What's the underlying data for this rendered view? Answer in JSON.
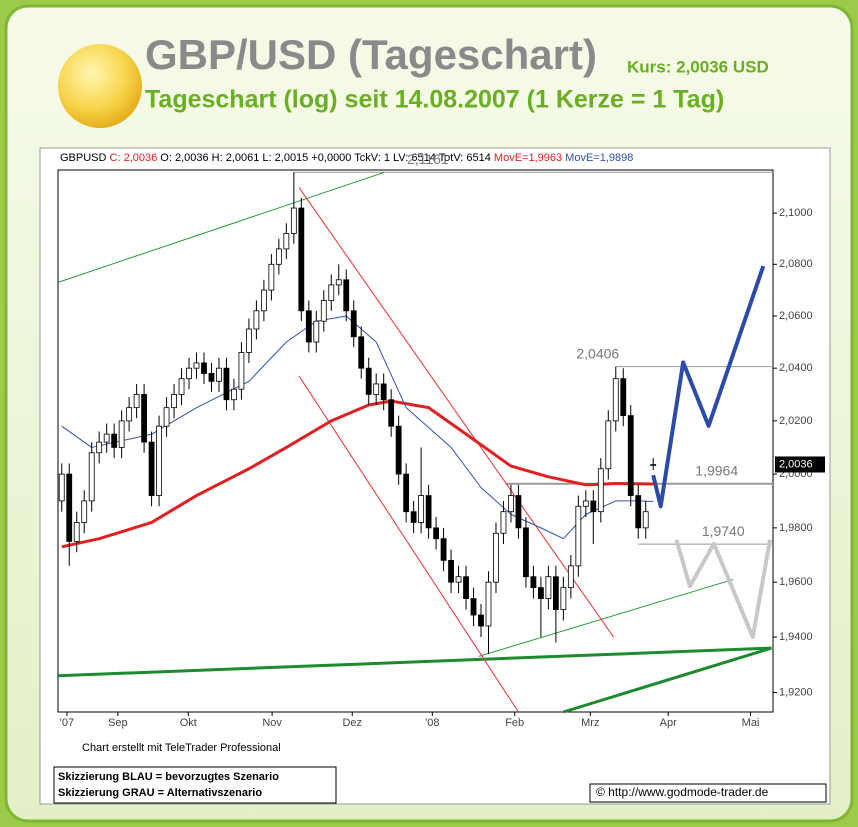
{
  "chart_data": {
    "type": "candlestick",
    "title": "GBP/USD (Tageschart)",
    "title_note": "Kurs: 2,0036 USD",
    "subtitle": "Tageschart (log) seit 14.08.2007 (1 Kerze = 1 Tag)",
    "info_symbol": "GBPUSD",
    "info_close": "C: 2,0036",
    "info_rest": "O: 2,0036 H: 2,0061 L: 2,0015 +0,0000 TckV: 1 LV: 6514 TotV: 6514",
    "price_tag": "2,0036",
    "footer": "Chart erstellt mit TeleTrader Professional",
    "notes": [
      "Skizzierung BLAU = bevorzugtes Szenario",
      "Skizzierung GRAU = Alternativszenario"
    ],
    "source": "© http://www.godmode-trader.de",
    "log_scale": true,
    "xlim": [
      -0.5,
      95
    ],
    "xticks": [
      {
        "value": 0.7,
        "label": "'07"
      },
      {
        "value": 7.5,
        "label": "Sep"
      },
      {
        "value": 16.9,
        "label": "Okt"
      },
      {
        "value": 28.1,
        "label": "Nov"
      },
      {
        "value": 38.8,
        "label": "Dez"
      },
      {
        "value": 49.5,
        "label": "'08"
      },
      {
        "value": 60.5,
        "label": "Feb"
      },
      {
        "value": 70.6,
        "label": "Mrz"
      },
      {
        "value": 81,
        "label": "Apr"
      },
      {
        "value": 92,
        "label": "Mai"
      }
    ],
    "ylim": [
      1.913,
      2.117
    ],
    "yticks": [
      {
        "value": 1.92,
        "label": "1,9200"
      },
      {
        "value": 1.94,
        "label": "1,9400"
      },
      {
        "value": 1.96,
        "label": "1,9600"
      },
      {
        "value": 1.98,
        "label": "1,9800"
      },
      {
        "value": 2.0,
        "label": "2,0000"
      },
      {
        "value": 2.02,
        "label": "2,0200"
      },
      {
        "value": 2.04,
        "label": "2,0400"
      },
      {
        "value": 2.06,
        "label": "2,0600"
      },
      {
        "value": 2.08,
        "label": "2,0800"
      },
      {
        "value": 2.1,
        "label": "2,1000"
      }
    ],
    "open": [
      1.99,
      2.0,
      1.975,
      1.982,
      1.99,
      2.008,
      2.012,
      2.015,
      2.01,
      2.02,
      2.025,
      2.03,
      2.012,
      1.992,
      2.018,
      2.025,
      2.03,
      2.036,
      2.04,
      2.042,
      2.038,
      2.035,
      2.04,
      2.028,
      2.032,
      2.046,
      2.055,
      2.062,
      2.07,
      2.08,
      2.086,
      2.092,
      2.102,
      2.062,
      2.05,
      2.058,
      2.066,
      2.072,
      2.074,
      2.062,
      2.052,
      2.04,
      2.03,
      2.034,
      2.028,
      2.018,
      2.0,
      1.986,
      1.982,
      1.992,
      1.98,
      1.976,
      1.968,
      1.96,
      1.962,
      1.954,
      1.948,
      1.944,
      1.96,
      1.978,
      1.986,
      1.992,
      1.98,
      1.962,
      1.958,
      1.954,
      1.962,
      1.95,
      1.958,
      1.966,
      1.988,
      1.99,
      1.986,
      2.002,
      2.02,
      2.036,
      2.022,
      1.992,
      1.98,
      2.0036
    ],
    "high": [
      2.004,
      2.004,
      1.986,
      1.994,
      2.012,
      2.016,
      2.019,
      2.019,
      2.024,
      2.029,
      2.034,
      2.034,
      2.016,
      2.022,
      2.029,
      2.034,
      2.04,
      2.044,
      2.046,
      2.046,
      2.042,
      2.044,
      2.044,
      2.036,
      2.05,
      2.059,
      2.066,
      2.074,
      2.084,
      2.09,
      2.096,
      2.1161,
      2.106,
      2.066,
      2.062,
      2.07,
      2.076,
      2.08,
      2.078,
      2.066,
      2.056,
      2.044,
      2.038,
      2.038,
      2.032,
      2.022,
      2.004,
      1.99,
      2.01,
      1.996,
      1.984,
      1.98,
      1.972,
      1.966,
      1.966,
      1.958,
      1.952,
      1.964,
      1.982,
      1.99,
      1.996,
      1.996,
      1.984,
      1.966,
      1.962,
      1.966,
      1.966,
      1.962,
      1.97,
      1.992,
      1.994,
      1.994,
      2.006,
      2.024,
      2.0406,
      2.04,
      2.026,
      1.996,
      1.99,
      2.0061
    ],
    "low": [
      1.986,
      1.966,
      1.971,
      1.978,
      1.986,
      2.004,
      2.008,
      2.006,
      2.006,
      2.016,
      2.021,
      2.008,
      1.988,
      1.988,
      2.014,
      2.021,
      2.026,
      2.032,
      2.036,
      2.034,
      2.031,
      2.031,
      2.024,
      2.024,
      2.028,
      2.042,
      2.051,
      2.058,
      2.066,
      2.076,
      2.082,
      2.088,
      2.058,
      2.046,
      2.046,
      2.054,
      2.062,
      2.068,
      2.058,
      2.048,
      2.036,
      2.026,
      2.026,
      2.024,
      2.014,
      1.996,
      1.982,
      1.978,
      1.978,
      1.976,
      1.972,
      1.964,
      1.956,
      1.956,
      1.95,
      1.944,
      1.94,
      1.934,
      1.956,
      1.974,
      1.982,
      1.976,
      1.958,
      1.954,
      1.94,
      1.95,
      1.938,
      1.946,
      1.954,
      1.962,
      1.984,
      1.974,
      1.982,
      1.998,
      2.016,
      2.018,
      1.988,
      1.976,
      1.976,
      2.0015
    ],
    "close": [
      2.0,
      1.975,
      1.982,
      1.99,
      2.008,
      2.012,
      2.015,
      2.01,
      2.02,
      2.025,
      2.03,
      2.012,
      1.992,
      2.018,
      2.025,
      2.03,
      2.036,
      2.04,
      2.042,
      2.038,
      2.035,
      2.04,
      2.028,
      2.032,
      2.046,
      2.055,
      2.062,
      2.07,
      2.08,
      2.086,
      2.092,
      2.102,
      2.062,
      2.05,
      2.058,
      2.066,
      2.072,
      2.074,
      2.062,
      2.052,
      2.04,
      2.03,
      2.034,
      2.028,
      2.018,
      2.0,
      1.986,
      1.982,
      1.992,
      1.98,
      1.976,
      1.968,
      1.96,
      1.962,
      1.954,
      1.948,
      1.944,
      1.96,
      1.978,
      1.986,
      1.992,
      1.98,
      1.962,
      1.958,
      1.954,
      1.962,
      1.95,
      1.958,
      1.966,
      1.988,
      1.99,
      1.986,
      2.002,
      2.02,
      2.036,
      2.022,
      1.992,
      1.98,
      1.986,
      2.0036
    ],
    "series": [
      {
        "name": "MovE=1,9963",
        "color": "#e02020",
        "width": 3,
        "x": [
          0,
          5,
          12,
          18,
          25,
          30,
          36,
          41,
          44,
          49,
          54,
          60,
          65,
          70,
          74,
          79
        ],
        "values": [
          1.973,
          1.976,
          1.982,
          1.992,
          2.002,
          2.01,
          2.02,
          2.026,
          2.0275,
          2.025,
          2.015,
          2.003,
          1.999,
          1.996,
          1.9965,
          1.9963
        ]
      },
      {
        "name": "MovE=1,9898",
        "color": "#3050b0",
        "width": 1,
        "x": [
          0,
          4,
          12,
          18,
          25,
          30,
          34,
          38,
          42,
          46,
          52,
          56,
          60,
          64,
          67,
          70,
          74,
          77,
          79
        ],
        "values": [
          2.018,
          2.01,
          2.015,
          2.025,
          2.035,
          2.05,
          2.058,
          2.06,
          2.05,
          2.025,
          2.01,
          1.995,
          1.985,
          1.98,
          1.976,
          1.985,
          1.99,
          1.99,
          1.9898
        ]
      }
    ],
    "levels": [
      {
        "value": 2.1161,
        "label": "2,1161",
        "x": 31
      },
      {
        "value": 2.0406,
        "label": "2,0406",
        "x": 74
      },
      {
        "value": 1.9964,
        "label": "1,9964",
        "x": 59.3
      },
      {
        "value": 1.974,
        "label": "1,9740",
        "x": 77
      }
    ],
    "drawings": [
      {
        "color": "#2a9a3a",
        "width": 1,
        "x": [
          -0.5,
          43
        ],
        "y": [
          2.073,
          2.116
        ]
      },
      {
        "color": "#2a9a3a",
        "width": 1,
        "x": [
          55.7,
          89.7
        ],
        "y": [
          1.933,
          1.961
        ]
      },
      {
        "color": "#1e8a30",
        "width": 3,
        "x": [
          -0.5,
          94.8
        ],
        "y": [
          1.926,
          1.936
        ]
      },
      {
        "color": "#1e8a30",
        "width": 3,
        "x": [
          67,
          94.8
        ],
        "y": [
          1.913,
          1.936
        ]
      },
      {
        "color": "#f03030",
        "width": 1,
        "x": [
          31.7,
          73.7
        ],
        "y": [
          2.11,
          1.94
        ]
      },
      {
        "color": "#f03030",
        "width": 1,
        "x": [
          31.7,
          61
        ],
        "y": [
          2.037,
          1.913
        ]
      },
      {
        "color": "#2c4aa8",
        "width": 4,
        "x": [
          79,
          80,
          83,
          86.4,
          93.7
        ],
        "y": [
          1.9996,
          1.988,
          2.0422,
          2.0181,
          2.0793
        ]
      },
      {
        "color": "#c8c8c8",
        "width": 4,
        "x": [
          82.1,
          83.9,
          87.1,
          92.3,
          94.6
        ],
        "y": [
          1.9756,
          1.9585,
          1.9741,
          1.94,
          1.9756
        ]
      }
    ]
  }
}
